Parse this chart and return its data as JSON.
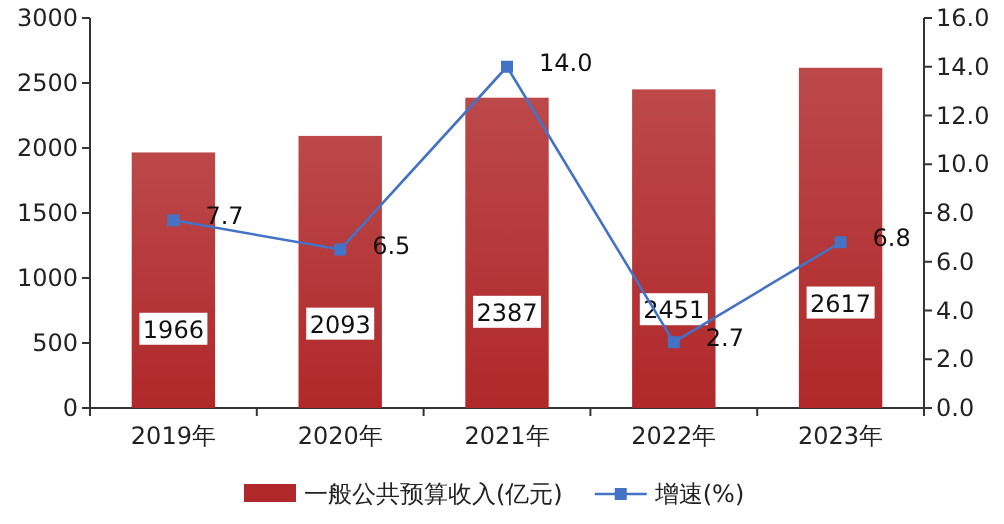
{
  "chart_data": {
    "type": "bar",
    "categories": [
      "2019年",
      "2020年",
      "2021年",
      "2022年",
      "2023年"
    ],
    "series": [
      {
        "name": "一般公共预算收入(亿元)",
        "color": "#b0282a",
        "values": [
          1966,
          2093,
          2387,
          2451,
          2617
        ]
      },
      {
        "name": "增速(%)",
        "type": "line",
        "axis": "y2",
        "color": "#4472c4",
        "marker": "square",
        "values": [
          7.7,
          6.5,
          14.0,
          2.7,
          6.8
        ],
        "value_labels": [
          "7.7",
          "6.5",
          "14.0",
          "2.7",
          "6.8"
        ]
      }
    ],
    "ylim": [
      0,
      3000
    ],
    "yticks": [
      0,
      500,
      1000,
      1500,
      2000,
      2500,
      3000
    ],
    "y2lim": [
      0,
      16
    ],
    "y2ticks": [
      {
        "value": 0,
        "label": "0.0"
      },
      {
        "value": 2,
        "label": "2.0"
      },
      {
        "value": 4,
        "label": "4.0"
      },
      {
        "value": 6,
        "label": "6.0"
      },
      {
        "value": 8,
        "label": "8.0"
      },
      {
        "value": 10,
        "label": "10.0"
      },
      {
        "value": 12,
        "label": "12.0"
      },
      {
        "value": 14,
        "label": "14.0"
      },
      {
        "value": 16,
        "label": "16.0"
      }
    ],
    "data_labels": true,
    "grid": false,
    "legend": "bottom"
  }
}
